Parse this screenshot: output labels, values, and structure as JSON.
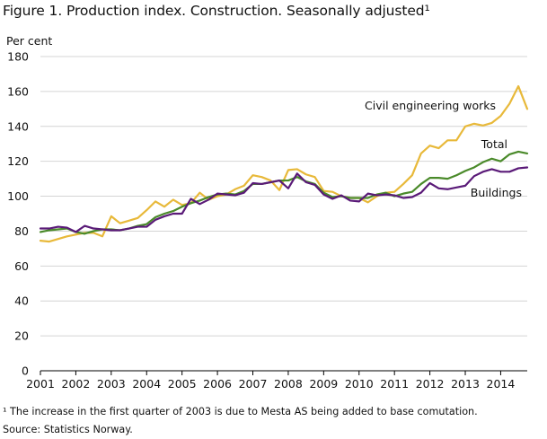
{
  "figure": {
    "title": "Figure 1. Production index. Construction. Seasonally adjusted¹",
    "footnote": "¹ The increase in the first quarter of 2003 is due to Mesta AS being added to base comutation.",
    "source": "Source: Statistics Norway."
  },
  "chart_data": {
    "type": "line",
    "title": "Figure 1. Production index. Construction. Seasonally adjusted¹",
    "ylabel": "Per cent",
    "xlabel": "",
    "ylim": [
      0,
      180
    ],
    "yticks": [
      0,
      20,
      40,
      60,
      80,
      100,
      120,
      140,
      160,
      180
    ],
    "xlim": [
      2001,
      2014.75
    ],
    "xticks": [
      "2001",
      "2002",
      "2003",
      "2004",
      "2005",
      "2006",
      "2007",
      "2008",
      "2009",
      "2010",
      "2011",
      "2012",
      "2013",
      "2014"
    ],
    "grid": "horizontal",
    "legend": "inline labels at line ends",
    "x": [
      2001.0,
      2001.25,
      2001.5,
      2001.75,
      2002.0,
      2002.25,
      2002.5,
      2002.75,
      2003.0,
      2003.25,
      2003.5,
      2003.75,
      2004.0,
      2004.25,
      2004.5,
      2004.75,
      2005.0,
      2005.25,
      2005.5,
      2005.75,
      2006.0,
      2006.25,
      2006.5,
      2006.75,
      2007.0,
      2007.25,
      2007.5,
      2007.75,
      2008.0,
      2008.25,
      2008.5,
      2008.75,
      2009.0,
      2009.25,
      2009.5,
      2009.75,
      2010.0,
      2010.25,
      2010.5,
      2010.75,
      2011.0,
      2011.25,
      2011.5,
      2011.75,
      2012.0,
      2012.25,
      2012.5,
      2012.75,
      2013.0,
      2013.25,
      2013.5,
      2013.75,
      2014.0,
      2014.25,
      2014.5,
      2014.75
    ],
    "series": [
      {
        "name": "Civil engineering  works",
        "color": "#e8b93a",
        "values": [
          74.5,
          74,
          75.5,
          77,
          78,
          79,
          79,
          77,
          88.5,
          84.5,
          86,
          87.5,
          92,
          97,
          94,
          98,
          95,
          96,
          102,
          98,
          100,
          101,
          104,
          106,
          112,
          111,
          109,
          103.5,
          115,
          115.5,
          112.5,
          111,
          103,
          102.5,
          100,
          99,
          99,
          96.5,
          100,
          102,
          102.5,
          107,
          112,
          124.5,
          129,
          127.5,
          132,
          132,
          140,
          141.5,
          140.5,
          142,
          146,
          153,
          163,
          150
        ]
      },
      {
        "name": "Total",
        "color": "#4a8a2a",
        "values": [
          79.5,
          80.5,
          81,
          81.5,
          79.5,
          78.5,
          80,
          81,
          81,
          80.5,
          81.5,
          83,
          84,
          88,
          90,
          91.5,
          94,
          96,
          97.5,
          99.5,
          101,
          101.5,
          101,
          103,
          107,
          107,
          108,
          109,
          109,
          111,
          108.5,
          107,
          102,
          99.5,
          100,
          99,
          99,
          99,
          101,
          102,
          100,
          101.5,
          102.5,
          107,
          110.5,
          110.5,
          110,
          112,
          114.5,
          116.5,
          119.5,
          121.5,
          120,
          124,
          125.5,
          124.5
        ]
      },
      {
        "name": "Buildings",
        "color": "#5a1a78",
        "values": [
          81.5,
          81.5,
          82.5,
          82,
          79.5,
          83,
          81.5,
          81,
          80.5,
          80.5,
          81.5,
          82.5,
          82.5,
          86.5,
          88.5,
          90,
          90,
          98.5,
          95.5,
          98,
          101.5,
          101,
          100.5,
          102,
          107.5,
          107,
          108,
          109,
          104.5,
          113,
          108,
          106.5,
          101,
          98.5,
          100.5,
          97.5,
          97,
          101.5,
          100.5,
          101,
          100.5,
          99,
          99.5,
          102,
          107.5,
          104.5,
          104,
          105,
          106,
          111.5,
          114,
          115.5,
          114,
          114,
          116,
          116.5
        ]
      }
    ]
  }
}
